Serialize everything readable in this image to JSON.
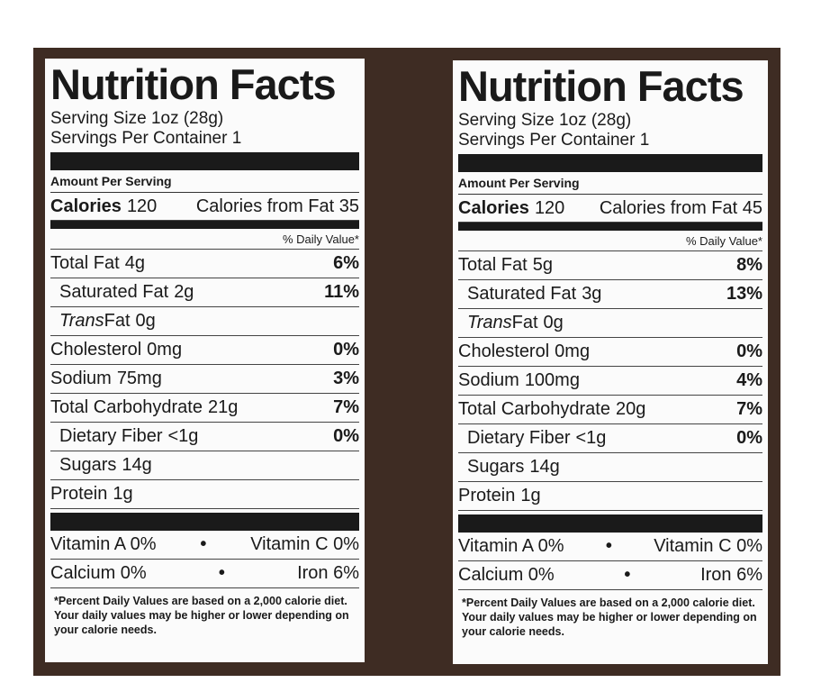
{
  "labels": [
    {
      "title": "Nutrition Facts",
      "serving_size": "Serving Size 1oz (28g)",
      "servings_per_container": "Servings Per Container 1",
      "amount_per_serving": "Amount Per Serving",
      "calories_label": "Calories",
      "calories_value": "120",
      "fat_calories": "Calories from Fat 35",
      "daily_value_header": "% Daily Value*",
      "nutrients": [
        {
          "name": "Total Fat",
          "amount": "4g",
          "dv": "6%",
          "sub": [
            {
              "name": "Saturated Fat",
              "amount": "2g",
              "dv": "11%"
            },
            {
              "prefix": "Trans",
              "name": "Fat",
              "amount": "0g"
            }
          ]
        },
        {
          "name": "Cholesterol",
          "amount": "0mg",
          "dv": "0%"
        },
        {
          "name": "Sodium",
          "amount": "75mg",
          "dv": "3%"
        },
        {
          "name": "Total Carbohydrate",
          "amount": "21g",
          "dv": "7%",
          "sub": [
            {
              "name": "Dietary Fiber",
              "amount": "<1g",
              "dv": "0%"
            },
            {
              "name": "Sugars",
              "amount": "14g"
            }
          ]
        },
        {
          "name": "Protein",
          "amount": "1g"
        }
      ],
      "vitamins": [
        [
          "Vitamin A 0%",
          "Vitamin C 0%"
        ],
        [
          "Calcium 0%",
          "Iron 6%"
        ]
      ],
      "footnote": "*Percent Daily Values are based on a 2,000 calorie diet. Your daily values may be higher or lower depending on your calorie needs."
    },
    {
      "title": "Nutrition Facts",
      "serving_size": "Serving Size 1oz (28g)",
      "servings_per_container": "Servings Per Container 1",
      "amount_per_serving": "Amount Per Serving",
      "calories_label": "Calories",
      "calories_value": "120",
      "fat_calories": "Calories from Fat 45",
      "daily_value_header": "% Daily Value*",
      "nutrients": [
        {
          "name": "Total Fat",
          "amount": "5g",
          "dv": "8%",
          "sub": [
            {
              "name": "Saturated Fat",
              "amount": "3g",
              "dv": "13%"
            },
            {
              "prefix": "Trans",
              "name": "Fat",
              "amount": "0g"
            }
          ]
        },
        {
          "name": "Cholesterol",
          "amount": "0mg",
          "dv": "0%"
        },
        {
          "name": "Sodium",
          "amount": "100mg",
          "dv": "4%"
        },
        {
          "name": "Total Carbohydrate",
          "amount": "20g",
          "dv": "7%",
          "sub": [
            {
              "name": "Dietary Fiber",
              "amount": "<1g",
              "dv": "0%"
            },
            {
              "name": "Sugars",
              "amount": "14g"
            }
          ]
        },
        {
          "name": "Protein",
          "amount": "1g"
        }
      ],
      "vitamins": [
        [
          "Vitamin A 0%",
          "Vitamin C 0%"
        ],
        [
          "Calcium 0%",
          "Iron 6%"
        ]
      ],
      "footnote": "*Percent Daily Values are based on a 2,000 calorie diet. Your daily values may be higher or lower depending on your calorie needs."
    }
  ]
}
